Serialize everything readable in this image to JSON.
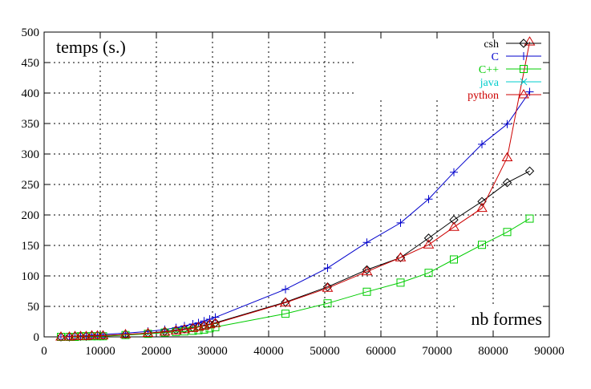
{
  "chart_data": {
    "type": "line",
    "title": "",
    "ylabel": "temps (s.)",
    "xlabel": "nb formes",
    "xlim": [
      0,
      90000
    ],
    "ylim": [
      0,
      500
    ],
    "xticks": [
      0,
      10000,
      20000,
      30000,
      40000,
      50000,
      60000,
      70000,
      80000,
      90000
    ],
    "yticks": [
      0,
      50,
      100,
      150,
      200,
      250,
      300,
      350,
      400,
      450,
      500
    ],
    "grid": true,
    "legend_position": "top-right",
    "series": [
      {
        "name": "csh",
        "color": "#000000",
        "marker": "diamond",
        "x": [
          3000,
          4500,
          5500,
          6500,
          7500,
          8500,
          9500,
          10500,
          14500,
          18500,
          21500,
          23500,
          25000,
          26500,
          27500,
          28500,
          29500,
          30500,
          43000,
          50500,
          57500,
          63500,
          68500,
          73000,
          78000,
          82500,
          86500
        ],
        "y": [
          0,
          0,
          1,
          1,
          1,
          2,
          2,
          2,
          4,
          6,
          9,
          11,
          13,
          15,
          17,
          19,
          21,
          23,
          57,
          82,
          110,
          130,
          162,
          192,
          222,
          253,
          272
        ]
      },
      {
        "name": "C",
        "color": "#0000cc",
        "marker": "plus",
        "x": [
          3000,
          4500,
          5500,
          6500,
          7500,
          8500,
          9500,
          10500,
          14500,
          18500,
          21500,
          23500,
          25000,
          26500,
          27500,
          28500,
          29500,
          30500,
          43000,
          50500,
          57500,
          63500,
          68500,
          73000,
          78000,
          82500,
          86500
        ],
        "y": [
          0,
          1,
          1,
          2,
          2,
          3,
          3,
          4,
          6,
          9,
          12,
          15,
          18,
          21,
          23,
          26,
          29,
          32,
          78,
          113,
          155,
          187,
          226,
          270,
          316,
          349,
          402
        ]
      },
      {
        "name": "C++",
        "color": "#00cc00",
        "marker": "square",
        "x": [
          3000,
          4500,
          5500,
          6500,
          7500,
          8500,
          9500,
          10500,
          14500,
          18500,
          21500,
          23500,
          25000,
          26500,
          27500,
          28500,
          29500,
          30500,
          43000,
          50500,
          57500,
          63500,
          68500,
          73000,
          78000,
          82500,
          86500
        ],
        "y": [
          0,
          0,
          0,
          1,
          1,
          1,
          1,
          1,
          3,
          5,
          7,
          8,
          9,
          10,
          11,
          12,
          14,
          16,
          38,
          55,
          74,
          89,
          105,
          127,
          151,
          172,
          194
        ]
      },
      {
        "name": "java",
        "color": "#00cccc",
        "marker": "cross",
        "x": [],
        "y": []
      },
      {
        "name": "python",
        "color": "#cc0000",
        "marker": "triangle",
        "x": [
          3000,
          4500,
          5500,
          6500,
          7500,
          8500,
          9500,
          10500,
          14500,
          18500,
          21500,
          23500,
          25000,
          26500,
          27500,
          28500,
          29500,
          30500,
          43000,
          50500,
          57500,
          63500,
          68500,
          73000,
          78000,
          82500,
          86500
        ],
        "y": [
          0,
          0,
          1,
          1,
          1,
          2,
          2,
          2,
          4,
          6,
          8,
          10,
          12,
          14,
          16,
          18,
          20,
          22,
          56,
          80,
          107,
          130,
          151,
          180,
          211,
          294,
          484
        ]
      }
    ]
  }
}
